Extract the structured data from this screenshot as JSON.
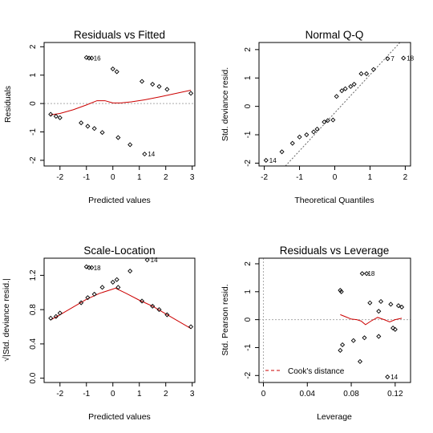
{
  "chart_data": [
    {
      "type": "scatter",
      "title": "Residuals vs Fitted",
      "xlabel": "Predicted values",
      "ylabel": "Residuals",
      "xlim": [
        -2.6,
        3.1
      ],
      "ylim": [
        -2.2,
        2.15
      ],
      "xticks": [
        -2,
        -1,
        0,
        1,
        2,
        3
      ],
      "yticks": [
        -2,
        -1,
        0,
        1,
        2
      ],
      "reference_line": {
        "y": 0,
        "style": "dotted",
        "color": "#aaaaaa"
      },
      "points": [
        {
          "x": -2.35,
          "y": -0.38
        },
        {
          "x": -2.15,
          "y": -0.45
        },
        {
          "x": -2.0,
          "y": -0.5
        },
        {
          "x": -1.2,
          "y": -0.68
        },
        {
          "x": -1.0,
          "y": 1.62
        },
        {
          "x": -0.9,
          "y": 1.6
        },
        {
          "x": -0.8,
          "y": 1.6
        },
        {
          "x": -0.95,
          "y": -0.8
        },
        {
          "x": -0.7,
          "y": -0.88
        },
        {
          "x": -0.4,
          "y": -1.02
        },
        {
          "x": 0.0,
          "y": 1.22
        },
        {
          "x": 0.15,
          "y": 1.12
        },
        {
          "x": 0.2,
          "y": -1.2
        },
        {
          "x": 0.65,
          "y": -1.45
        },
        {
          "x": 1.1,
          "y": 0.78
        },
        {
          "x": 1.2,
          "y": -1.78
        },
        {
          "x": 1.5,
          "y": 0.68
        },
        {
          "x": 1.75,
          "y": 0.6
        },
        {
          "x": 2.05,
          "y": 0.5
        },
        {
          "x": 2.95,
          "y": 0.36
        }
      ],
      "point_labels": [
        {
          "x": -0.85,
          "y": 1.6,
          "text": "16"
        },
        {
          "x": 1.2,
          "y": -1.78,
          "text": "14"
        }
      ],
      "series": [
        {
          "style": "smooth",
          "color": "#cc0000",
          "x": [
            -2.35,
            -2.0,
            -1.5,
            -1.0,
            -0.6,
            -0.3,
            0.0,
            0.3,
            0.7,
            1.2,
            1.8,
            2.4,
            2.95
          ],
          "y": [
            -0.4,
            -0.35,
            -0.22,
            -0.05,
            0.1,
            0.1,
            0.02,
            0.02,
            0.06,
            0.13,
            0.24,
            0.36,
            0.47
          ]
        }
      ]
    },
    {
      "type": "scatter",
      "title": "Normal Q-Q",
      "xlabel": "Theoretical Quantiles",
      "ylabel": "Std. deviance resid.",
      "xlim": [
        -2.15,
        2.15
      ],
      "ylim": [
        -2.1,
        2.25
      ],
      "xticks": [
        -2,
        -1,
        0,
        1,
        2
      ],
      "yticks": [
        -2,
        -1,
        0,
        1,
        2
      ],
      "reference_line": {
        "x": [
          -1.4,
          1.85
        ],
        "y": [
          -2.1,
          2.25
        ],
        "style": "dotted",
        "color": "#666666"
      },
      "points": [
        {
          "x": -1.95,
          "y": -1.9
        },
        {
          "x": -1.5,
          "y": -1.6
        },
        {
          "x": -1.2,
          "y": -1.3
        },
        {
          "x": -1.0,
          "y": -1.08
        },
        {
          "x": -0.8,
          "y": -1.0
        },
        {
          "x": -0.6,
          "y": -0.9
        },
        {
          "x": -0.5,
          "y": -0.8
        },
        {
          "x": -0.3,
          "y": -0.55
        },
        {
          "x": -0.2,
          "y": -0.5
        },
        {
          "x": -0.05,
          "y": -0.48
        },
        {
          "x": 0.05,
          "y": 0.35
        },
        {
          "x": 0.2,
          "y": 0.55
        },
        {
          "x": 0.3,
          "y": 0.62
        },
        {
          "x": 0.45,
          "y": 0.7
        },
        {
          "x": 0.55,
          "y": 0.78
        },
        {
          "x": 0.75,
          "y": 1.15
        },
        {
          "x": 0.9,
          "y": 1.15
        },
        {
          "x": 1.1,
          "y": 1.3
        },
        {
          "x": 1.5,
          "y": 1.68
        },
        {
          "x": 1.95,
          "y": 1.7
        }
      ],
      "point_labels": [
        {
          "x": -1.95,
          "y": -1.9,
          "text": "14"
        },
        {
          "x": 1.5,
          "y": 1.68,
          "text": "7"
        },
        {
          "x": 1.95,
          "y": 1.7,
          "text": "18"
        }
      ]
    },
    {
      "type": "scatter",
      "title": "Scale-Location",
      "xlabel": "Predicted values",
      "ylabel": "√|Std. deviance resid.|",
      "xlim": [
        -2.6,
        3.1
      ],
      "ylim": [
        -0.05,
        1.4
      ],
      "xticks": [
        -2,
        -1,
        0,
        1,
        2,
        3
      ],
      "yticks": [
        0.0,
        0.4,
        0.8,
        1.2
      ],
      "points": [
        {
          "x": -2.35,
          "y": 0.7
        },
        {
          "x": -2.15,
          "y": 0.72
        },
        {
          "x": -2.0,
          "y": 0.76
        },
        {
          "x": -1.2,
          "y": 0.88
        },
        {
          "x": -0.95,
          "y": 0.94
        },
        {
          "x": -0.7,
          "y": 0.98
        },
        {
          "x": -1.0,
          "y": 1.3
        },
        {
          "x": -0.9,
          "y": 1.29
        },
        {
          "x": -0.8,
          "y": 1.29
        },
        {
          "x": -0.4,
          "y": 1.06
        },
        {
          "x": 0.0,
          "y": 1.12
        },
        {
          "x": 0.15,
          "y": 1.15
        },
        {
          "x": 0.2,
          "y": 1.06
        },
        {
          "x": 0.65,
          "y": 1.25
        },
        {
          "x": 1.1,
          "y": 0.9
        },
        {
          "x": 1.3,
          "y": 1.38
        },
        {
          "x": 1.5,
          "y": 0.84
        },
        {
          "x": 1.75,
          "y": 0.8
        },
        {
          "x": 2.05,
          "y": 0.74
        },
        {
          "x": 2.95,
          "y": 0.6
        }
      ],
      "point_labels": [
        {
          "x": -0.85,
          "y": 1.29,
          "text": "18"
        },
        {
          "x": 1.3,
          "y": 1.38,
          "text": "14"
        }
      ],
      "series": [
        {
          "style": "smooth",
          "color": "#cc0000",
          "x": [
            -2.35,
            -2.0,
            -1.5,
            -1.0,
            -0.5,
            0.0,
            0.1,
            0.5,
            1.0,
            1.5,
            2.0,
            2.5,
            2.95
          ],
          "y": [
            0.68,
            0.74,
            0.83,
            0.92,
            0.99,
            1.04,
            1.05,
            0.99,
            0.91,
            0.84,
            0.75,
            0.66,
            0.58
          ]
        }
      ]
    },
    {
      "type": "scatter",
      "title": "Residuals vs Leverage",
      "xlabel": "Leverage",
      "ylabel": "Std. Pearson resid.",
      "xlim": [
        -0.004,
        0.134
      ],
      "ylim": [
        -2.25,
        2.2
      ],
      "xticks": [
        0.0,
        0.04,
        0.08,
        0.12
      ],
      "yticks": [
        -2,
        -1,
        0,
        1,
        2
      ],
      "reference_line": {
        "y": 0,
        "x": 0,
        "style": "dotted",
        "color": "#aaaaaa"
      },
      "legend": {
        "position": "bottom-left",
        "entries": [
          {
            "label": "Cook's distance",
            "style": "dashed",
            "color": "#cc0000"
          }
        ]
      },
      "points": [
        {
          "x": 0.07,
          "y": 1.05
        },
        {
          "x": 0.071,
          "y": 1.0
        },
        {
          "x": 0.07,
          "y": -1.1
        },
        {
          "x": 0.072,
          "y": -0.9
        },
        {
          "x": 0.082,
          "y": -0.75
        },
        {
          "x": 0.088,
          "y": -1.5
        },
        {
          "x": 0.09,
          "y": 1.65
        },
        {
          "x": 0.094,
          "y": 1.65
        },
        {
          "x": 0.092,
          "y": -0.65
        },
        {
          "x": 0.097,
          "y": 0.6
        },
        {
          "x": 0.105,
          "y": 0.3
        },
        {
          "x": 0.105,
          "y": -0.6
        },
        {
          "x": 0.107,
          "y": 0.65
        },
        {
          "x": 0.113,
          "y": -2.05
        },
        {
          "x": 0.116,
          "y": 0.55
        },
        {
          "x": 0.118,
          "y": -0.3
        },
        {
          "x": 0.12,
          "y": -0.35
        },
        {
          "x": 0.123,
          "y": 0.5
        },
        {
          "x": 0.126,
          "y": 0.45
        }
      ],
      "point_labels": [
        {
          "x": 0.092,
          "y": 1.65,
          "text": "18"
        },
        {
          "x": 0.113,
          "y": -2.05,
          "text": "14"
        }
      ],
      "series": [
        {
          "style": "smooth",
          "color": "#cc0000",
          "x": [
            0.07,
            0.075,
            0.08,
            0.085,
            0.089,
            0.093,
            0.098,
            0.104,
            0.11,
            0.115,
            0.12,
            0.126
          ],
          "y": [
            0.18,
            0.1,
            0.02,
            0.0,
            -0.05,
            -0.18,
            -0.05,
            0.08,
            0.0,
            -0.08,
            0.0,
            0.05
          ]
        }
      ]
    }
  ]
}
